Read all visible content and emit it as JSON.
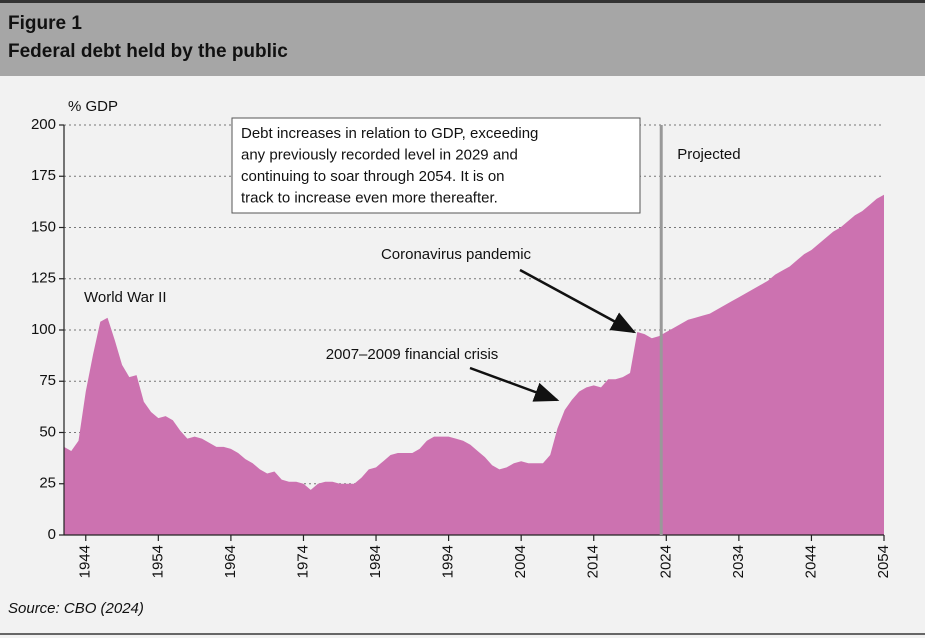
{
  "chart_data": {
    "type": "area",
    "figure": "Figure 1",
    "title": "Federal debt held by the public",
    "y_label": "% GDP",
    "source": "Source: CBO (2024)",
    "color": "#cc72b0",
    "x": [
      1941,
      1942,
      1943,
      1944,
      1945,
      1946,
      1947,
      1948,
      1949,
      1950,
      1951,
      1952,
      1953,
      1954,
      1955,
      1956,
      1957,
      1958,
      1959,
      1960,
      1961,
      1962,
      1963,
      1964,
      1965,
      1966,
      1967,
      1968,
      1969,
      1970,
      1971,
      1972,
      1973,
      1974,
      1975,
      1976,
      1977,
      1978,
      1979,
      1980,
      1981,
      1982,
      1983,
      1984,
      1985,
      1986,
      1987,
      1988,
      1989,
      1990,
      1991,
      1992,
      1993,
      1994,
      1995,
      1996,
      1997,
      1998,
      1999,
      2000,
      2001,
      2002,
      2003,
      2004,
      2005,
      2006,
      2007,
      2008,
      2009,
      2010,
      2011,
      2012,
      2013,
      2014,
      2015,
      2016,
      2017,
      2018,
      2019,
      2020,
      2021,
      2022,
      2023,
      2024,
      2025,
      2026,
      2027,
      2028,
      2029,
      2030,
      2031,
      2032,
      2033,
      2034,
      2035,
      2036,
      2037,
      2038,
      2039,
      2040,
      2041,
      2042,
      2043,
      2044,
      2045,
      2046,
      2047,
      2048,
      2049,
      2050,
      2051,
      2052,
      2053,
      2054
    ],
    "values": [
      43,
      41,
      46,
      70,
      88,
      104,
      106,
      95,
      83,
      77,
      78,
      65,
      60,
      57,
      58,
      56,
      51,
      47,
      48,
      47,
      45,
      43,
      43,
      42,
      40,
      37,
      35,
      32,
      30,
      31,
      27,
      26,
      26,
      25,
      22,
      25,
      26,
      26,
      25,
      25,
      25,
      28,
      32,
      33,
      36,
      39,
      40,
      40,
      40,
      42,
      46,
      48,
      48,
      48,
      47,
      46,
      44,
      41,
      38,
      34,
      32,
      33,
      35,
      36,
      35,
      35,
      35,
      39,
      52,
      61,
      66,
      70,
      72,
      73,
      72,
      76,
      76,
      77,
      79,
      99,
      98,
      96,
      97,
      99,
      101,
      103,
      105,
      106,
      107,
      108,
      110,
      112,
      114,
      116,
      118,
      120,
      122,
      124,
      127,
      129,
      131,
      134,
      137,
      139,
      142,
      145,
      148,
      150,
      153,
      156,
      158,
      161,
      164,
      166
    ],
    "xlim": [
      1941,
      2054
    ],
    "ylim": [
      0,
      200
    ],
    "xticks": [
      1944,
      1954,
      1964,
      1974,
      1984,
      1994,
      2004,
      2014,
      2024,
      2034,
      2044,
      2054
    ],
    "yticks": [
      0,
      25,
      50,
      75,
      100,
      125,
      150,
      175,
      200
    ],
    "grid": true,
    "projection_start": 2023.3,
    "projection_label": "Projected",
    "note_lines": [
      "Debt increases in relation to GDP, exceeding",
      "any previously recorded level in 2029 and",
      "continuing to soar through 2054. It is on",
      "track to increase even more thereafter."
    ],
    "annotations": [
      "World War II",
      "2007–2009 financial crisis",
      "Coronavirus pandemic"
    ]
  }
}
